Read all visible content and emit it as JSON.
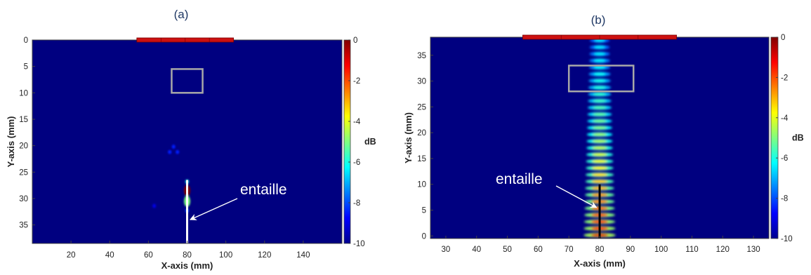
{
  "chart_data": [
    {
      "type": "heatmap",
      "title": "(a)",
      "xlabel": "X-axis (mm)",
      "ylabel": "Y-axis (mm)",
      "x_ticks": [
        20,
        40,
        60,
        80,
        100,
        120,
        140
      ],
      "y_ticks": [
        0,
        5,
        10,
        15,
        20,
        25,
        30,
        35
      ],
      "xlim": [
        0,
        160
      ],
      "ylim": [
        0,
        38.5
      ],
      "y_reversed": true,
      "colorbar": {
        "label": "dB",
        "ticks": [
          0,
          -2,
          -4,
          -6,
          -8,
          -10
        ],
        "range": [
          -10,
          0
        ],
        "colormap": "jet"
      },
      "background_level_db": -10,
      "probe": {
        "x_start": 54,
        "x_end": 104,
        "y": 0,
        "color": "#cc1111"
      },
      "region_box": {
        "x0": 72,
        "x1": 88,
        "y0": 5.5,
        "y1": 10
      },
      "notch": {
        "x": 80,
        "y_top": 26.5,
        "y_bottom": 38.5,
        "color": "#ffffff"
      },
      "annotation": {
        "text": "entaille",
        "target_x": 80.5,
        "target_y": 34
      },
      "hotspots": [
        {
          "x": 80,
          "y": 28.5,
          "level_db": 0
        },
        {
          "x": 80,
          "y": 30.5,
          "level_db": -5
        },
        {
          "x": 80,
          "y": 26.8,
          "level_db": -6
        },
        {
          "x": 80,
          "y": 32.3,
          "level_db": -8
        },
        {
          "x": 73,
          "y": 20.2,
          "level_db": -8.5
        },
        {
          "x": 75,
          "y": 21.2,
          "level_db": -8.5
        },
        {
          "x": 71,
          "y": 21.2,
          "level_db": -8.5
        },
        {
          "x": 63,
          "y": 31.4,
          "level_db": -9
        }
      ]
    },
    {
      "type": "heatmap",
      "title": "(b)",
      "xlabel": "X-axis (mm)",
      "ylabel": "Y-axis (mm)",
      "x_ticks": [
        30,
        40,
        50,
        60,
        70,
        80,
        90,
        100,
        110,
        120,
        130
      ],
      "y_ticks": [
        0,
        5,
        10,
        15,
        20,
        25,
        30,
        35
      ],
      "xlim": [
        25,
        135
      ],
      "ylim": [
        -0.5,
        38.5
      ],
      "y_reversed": false,
      "colorbar": {
        "label": "dB",
        "ticks": [
          0,
          -2,
          -4,
          -6,
          -8,
          -10
        ],
        "range": [
          -10,
          0
        ],
        "colormap": "jet"
      },
      "background_level_db": -10,
      "probe": {
        "x_start": 55,
        "x_end": 105,
        "y": 38.5,
        "color": "#cc1111"
      },
      "region_box": {
        "x0": 70,
        "x1": 91,
        "y0": 28,
        "y1": 33
      },
      "notch": {
        "x": 80,
        "y_top": 10,
        "y_bottom": -0.5,
        "color": "#000000"
      },
      "annotation": {
        "text": "entaille",
        "target_x": 79,
        "target_y": 5.5
      },
      "beam": {
        "x_center": 80,
        "y_top": 38.5,
        "y_bottom": -0.5,
        "half_width_top": 3.2,
        "half_width_bottom": 5.2,
        "fringe_count": 30
      }
    }
  ]
}
